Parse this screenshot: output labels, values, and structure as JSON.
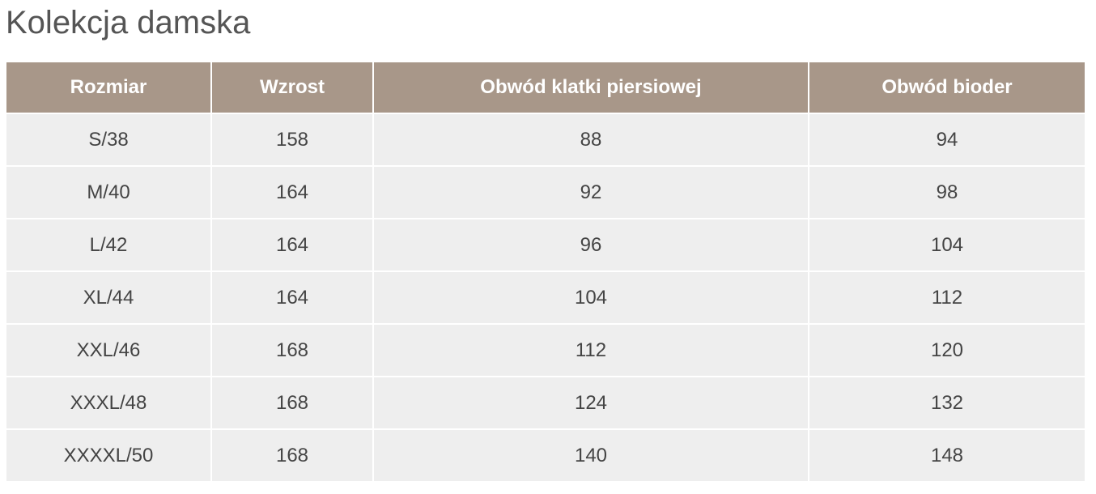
{
  "title": "Kolekcja damska",
  "colors": {
    "header_bg": "#a89789",
    "row_bg": "#eeeeee"
  },
  "headers": [
    "Rozmiar",
    "Wzrost",
    "Obwód klatki piersiowej",
    "Obwód bioder"
  ],
  "rows": [
    [
      "S/38",
      "158",
      "88",
      "94"
    ],
    [
      "M/40",
      "164",
      "92",
      "98"
    ],
    [
      "L/42",
      "164",
      "96",
      "104"
    ],
    [
      "XL/44",
      "164",
      "104",
      "112"
    ],
    [
      "XXL/46",
      "168",
      "112",
      "120"
    ],
    [
      "XXXL/48",
      "168",
      "124",
      "132"
    ],
    [
      "XXXXL/50",
      "168",
      "140",
      "148"
    ]
  ]
}
